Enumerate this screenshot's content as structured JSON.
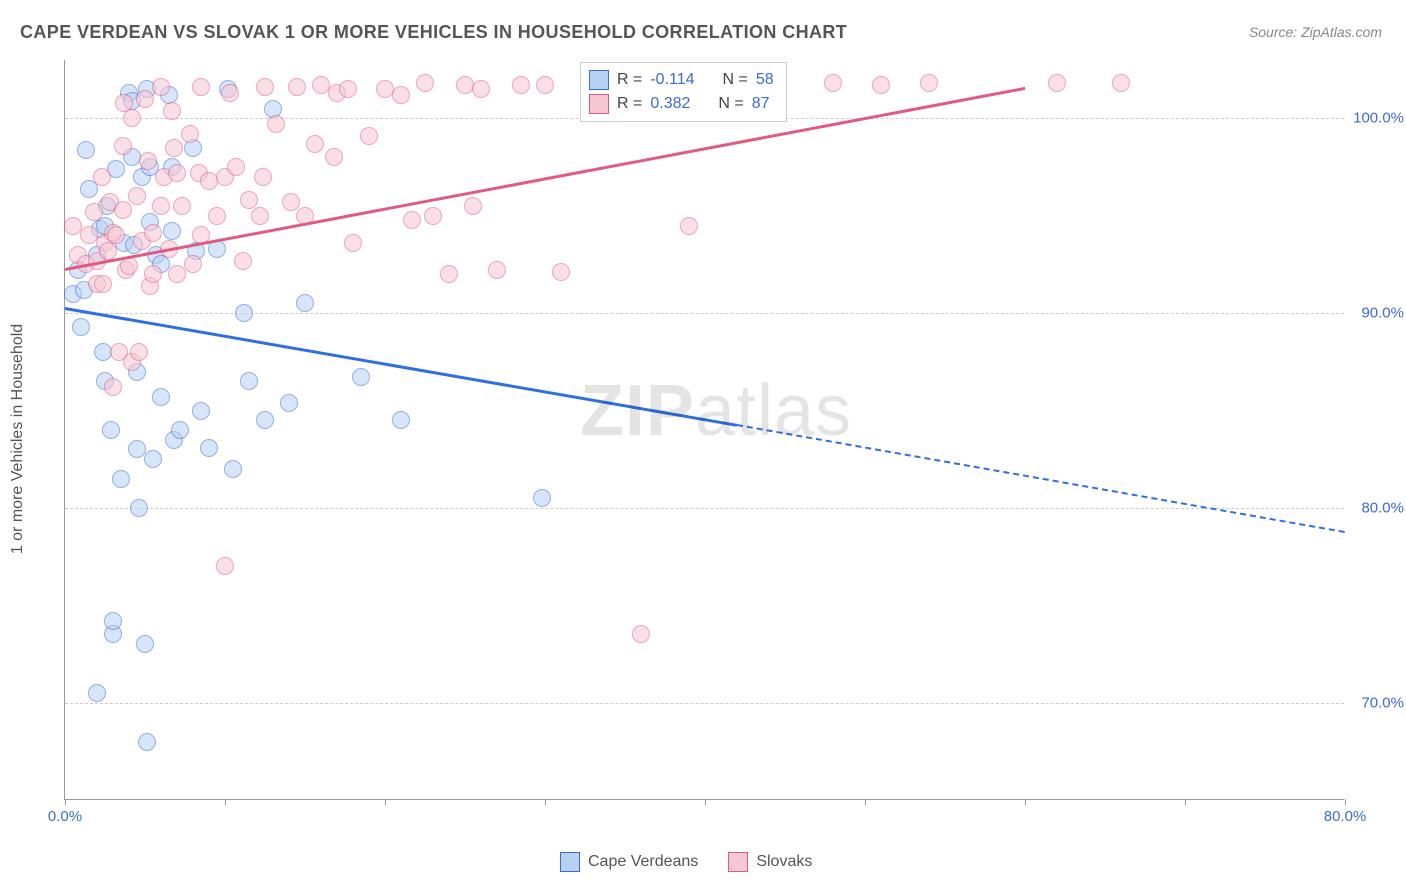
{
  "chart": {
    "title": "CAPE VERDEAN VS SLOVAK 1 OR MORE VEHICLES IN HOUSEHOLD CORRELATION CHART",
    "source": "Source: ZipAtlas.com",
    "watermark_bold": "ZIP",
    "watermark_light": "atlas",
    "y_axis_title": "1 or more Vehicles in Household",
    "type": "scatter",
    "background_color": "#ffffff",
    "grid_color": "#cccccc",
    "axis_color": "#999999",
    "text_color": "#555555",
    "value_color": "#3a6bd6",
    "xlim": [
      0.0,
      80.0
    ],
    "ylim": [
      65.0,
      103.0
    ],
    "x_ticks": [
      0.0,
      10.0,
      20.0,
      30.0,
      40.0,
      50.0,
      60.0,
      70.0,
      80.0
    ],
    "x_tick_labels": [
      "0.0%",
      "",
      "",
      "",
      "",
      "",
      "",
      "",
      "80.0%"
    ],
    "y_ticks": [
      70.0,
      80.0,
      90.0,
      100.0
    ],
    "y_tick_labels": [
      "70.0%",
      "80.0%",
      "90.0%",
      "100.0%"
    ],
    "marker_radius": 9,
    "marker_opacity": 0.55,
    "line_width": 3,
    "series": [
      {
        "name": "Cape Verdeans",
        "legend_label": "Cape Verdeans",
        "fill": "#b6d1f2",
        "stroke": "#3a6bd6",
        "line_color": "#2f6fe0",
        "R_label": "R =",
        "R": "-0.114",
        "N_label": "N =",
        "N": "58",
        "trend": {
          "x1": 0.0,
          "y1": 90.3,
          "x2": 42.0,
          "y2": 84.3,
          "x2_dash": 80.0,
          "y2_dash": 78.8
        },
        "points": [
          [
            0.5,
            91.0
          ],
          [
            1.0,
            89.3
          ],
          [
            0.8,
            92.2
          ],
          [
            1.2,
            91.2
          ],
          [
            1.3,
            98.4
          ],
          [
            1.5,
            96.4
          ],
          [
            2.0,
            70.5
          ],
          [
            2.0,
            93.0
          ],
          [
            2.2,
            94.3
          ],
          [
            2.4,
            88.0
          ],
          [
            2.5,
            86.5
          ],
          [
            2.5,
            94.5
          ],
          [
            2.6,
            95.5
          ],
          [
            2.9,
            84.0
          ],
          [
            3.0,
            73.5
          ],
          [
            3.0,
            74.2
          ],
          [
            3.2,
            97.4
          ],
          [
            3.5,
            81.5
          ],
          [
            3.7,
            93.6
          ],
          [
            4.2,
            98.0
          ],
          [
            4.0,
            101.3
          ],
          [
            4.2,
            100.9
          ],
          [
            4.3,
            93.5
          ],
          [
            4.5,
            87.0
          ],
          [
            4.5,
            83.0
          ],
          [
            4.6,
            80.0
          ],
          [
            4.8,
            97.0
          ],
          [
            5.0,
            73.0
          ],
          [
            5.1,
            68.0
          ],
          [
            5.1,
            101.5
          ],
          [
            5.3,
            97.5
          ],
          [
            5.3,
            94.7
          ],
          [
            5.5,
            82.5
          ],
          [
            5.7,
            93.0
          ],
          [
            6.0,
            85.7
          ],
          [
            6.0,
            92.5
          ],
          [
            6.5,
            101.2
          ],
          [
            6.7,
            97.5
          ],
          [
            6.7,
            94.2
          ],
          [
            6.8,
            83.5
          ],
          [
            7.2,
            84.0
          ],
          [
            8.0,
            98.5
          ],
          [
            8.2,
            93.2
          ],
          [
            8.5,
            85.0
          ],
          [
            9.0,
            83.1
          ],
          [
            9.5,
            93.3
          ],
          [
            10.2,
            101.5
          ],
          [
            10.5,
            82.0
          ],
          [
            11.2,
            90.0
          ],
          [
            11.5,
            86.5
          ],
          [
            12.5,
            84.5
          ],
          [
            13.0,
            100.5
          ],
          [
            14.0,
            85.4
          ],
          [
            15.0,
            90.5
          ],
          [
            18.5,
            86.7
          ],
          [
            21.0,
            84.5
          ],
          [
            29.8,
            80.5
          ],
          [
            41.0,
            101.8
          ]
        ]
      },
      {
        "name": "Slovaks",
        "legend_label": "Slovaks",
        "fill": "#f6c8d3",
        "stroke": "#e15a82",
        "line_color": "#e15a82",
        "R_label": "R =",
        "R": "0.382",
        "N_label": "N =",
        "N": "87",
        "trend": {
          "x1": 0.0,
          "y1": 92.3,
          "x2": 60.0,
          "y2": 101.6,
          "x2_dash": 60.0,
          "y2_dash": 101.6
        },
        "points": [
          [
            0.5,
            94.5
          ],
          [
            0.8,
            93.0
          ],
          [
            1.3,
            92.5
          ],
          [
            1.5,
            94.0
          ],
          [
            1.8,
            95.2
          ],
          [
            2.0,
            91.5
          ],
          [
            2.0,
            92.7
          ],
          [
            2.4,
            91.5
          ],
          [
            2.3,
            97.0
          ],
          [
            2.5,
            93.6
          ],
          [
            2.7,
            93.2
          ],
          [
            2.8,
            95.7
          ],
          [
            3.0,
            86.2
          ],
          [
            3.0,
            94.1
          ],
          [
            3.2,
            94.0
          ],
          [
            3.4,
            88.0
          ],
          [
            3.6,
            98.6
          ],
          [
            3.6,
            95.3
          ],
          [
            3.7,
            100.8
          ],
          [
            3.8,
            92.2
          ],
          [
            4.0,
            92.4
          ],
          [
            4.2,
            87.5
          ],
          [
            4.2,
            100.0
          ],
          [
            4.5,
            96.0
          ],
          [
            4.6,
            88.0
          ],
          [
            4.8,
            93.7
          ],
          [
            5.0,
            101.0
          ],
          [
            5.2,
            97.8
          ],
          [
            5.3,
            91.4
          ],
          [
            5.5,
            94.1
          ],
          [
            5.5,
            92.0
          ],
          [
            6.0,
            101.6
          ],
          [
            6.0,
            95.5
          ],
          [
            6.2,
            97.0
          ],
          [
            6.5,
            93.3
          ],
          [
            6.7,
            100.4
          ],
          [
            6.8,
            98.5
          ],
          [
            7.0,
            97.2
          ],
          [
            7.0,
            92.0
          ],
          [
            7.3,
            95.5
          ],
          [
            7.8,
            99.2
          ],
          [
            8.0,
            92.5
          ],
          [
            8.4,
            97.2
          ],
          [
            8.5,
            94.0
          ],
          [
            8.5,
            101.6
          ],
          [
            9.0,
            96.8
          ],
          [
            9.5,
            95.0
          ],
          [
            10.0,
            97.0
          ],
          [
            10.0,
            77.0
          ],
          [
            10.3,
            101.3
          ],
          [
            10.7,
            97.5
          ],
          [
            11.1,
            92.7
          ],
          [
            11.5,
            95.8
          ],
          [
            12.2,
            95.0
          ],
          [
            12.4,
            97.0
          ],
          [
            12.5,
            101.6
          ],
          [
            13.2,
            99.7
          ],
          [
            14.1,
            95.7
          ],
          [
            14.5,
            101.6
          ],
          [
            15.0,
            95.0
          ],
          [
            15.6,
            98.7
          ],
          [
            16.0,
            101.7
          ],
          [
            16.8,
            98.0
          ],
          [
            17.0,
            101.3
          ],
          [
            17.7,
            101.5
          ],
          [
            18.0,
            93.6
          ],
          [
            19.0,
            99.1
          ],
          [
            20.0,
            101.5
          ],
          [
            21.0,
            101.2
          ],
          [
            21.7,
            94.8
          ],
          [
            22.5,
            101.8
          ],
          [
            23.0,
            95.0
          ],
          [
            24.0,
            92.0
          ],
          [
            25.0,
            101.7
          ],
          [
            25.5,
            95.5
          ],
          [
            26.0,
            101.5
          ],
          [
            27.0,
            92.2
          ],
          [
            28.5,
            101.7
          ],
          [
            30.0,
            101.7
          ],
          [
            31.0,
            92.1
          ],
          [
            36.0,
            73.5
          ],
          [
            39.0,
            94.5
          ],
          [
            48.0,
            101.8
          ],
          [
            51.0,
            101.7
          ],
          [
            54.0,
            101.8
          ],
          [
            62.0,
            101.8
          ],
          [
            66.0,
            101.8
          ]
        ]
      }
    ]
  }
}
